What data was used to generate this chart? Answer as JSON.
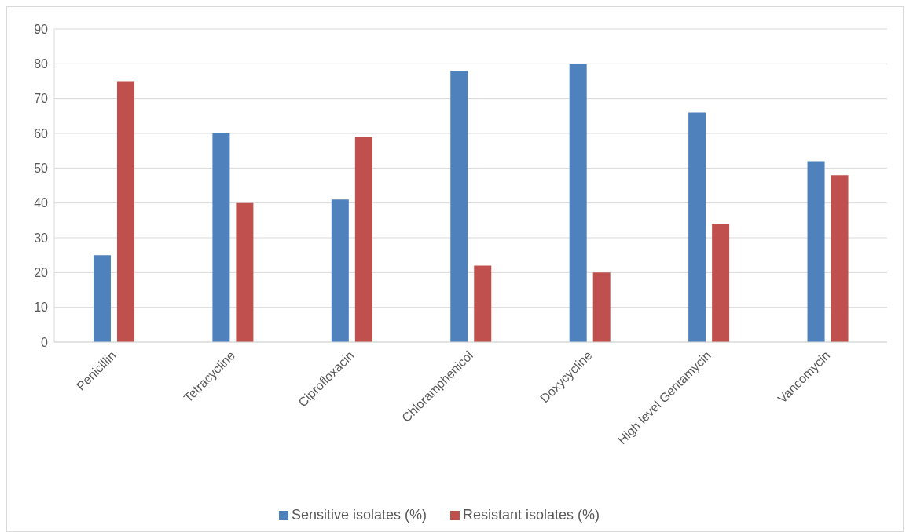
{
  "chart_data": {
    "type": "bar",
    "categories": [
      "Penicillin",
      "Tetracycline",
      "Ciprofloxacin",
      "Chloramphenicol",
      "Doxycycline",
      "High level Gentamycin",
      "Vancomycin"
    ],
    "series": [
      {
        "name": "Sensitive isolates (%)",
        "color": "#4f81bd",
        "values": [
          25,
          60,
          41,
          78,
          80,
          66,
          52
        ]
      },
      {
        "name": "Resistant isolates (%)",
        "color": "#c0504d",
        "values": [
          75,
          40,
          59,
          22,
          20,
          34,
          48
        ]
      }
    ],
    "ylim": [
      0,
      90
    ],
    "yticks": [
      0,
      10,
      20,
      30,
      40,
      50,
      60,
      70,
      80,
      90
    ],
    "grid": "y",
    "legend": "bottom"
  }
}
